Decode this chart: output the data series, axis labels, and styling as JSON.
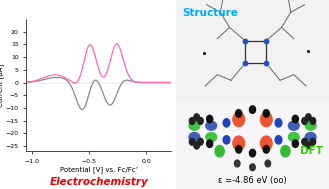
{
  "fig_width": 3.29,
  "fig_height": 1.89,
  "dpi": 100,
  "bg_color": "#ffffff",
  "left_panel": {
    "xlim": [
      -1.05,
      0.22
    ],
    "ylim": [
      -27,
      25
    ],
    "xlabel": "Potential [V] vs. Fc/Fc’",
    "ylabel": "Current [µA]",
    "xlabel_fontsize": 5.0,
    "ylabel_fontsize": 5.0,
    "tick_fontsize": 4.5,
    "title": "Electrochemistry",
    "title_color": "#ee0000",
    "title_fontsize": 7.5,
    "xticks": [
      -1.0,
      -0.5,
      0.0
    ],
    "yticks": [
      -25,
      -20,
      -15,
      -10,
      -5,
      0,
      5,
      10,
      15,
      20
    ]
  },
  "right_panel": {
    "structure_label": "Structure",
    "structure_color": "#00aaff",
    "structure_fontsize": 7.5,
    "dft_label": "DFT",
    "dft_color": "#33cc00",
    "dft_fontsize": 7.5,
    "epsilon_label": "ε =-4.86 eV (oo)",
    "epsilon_fontsize": 6.0,
    "epsilon_color": "#000000"
  },
  "curve_pink_color": "#ff69b4",
  "curve_gray_color": "#888888",
  "spine_color": "#000000"
}
